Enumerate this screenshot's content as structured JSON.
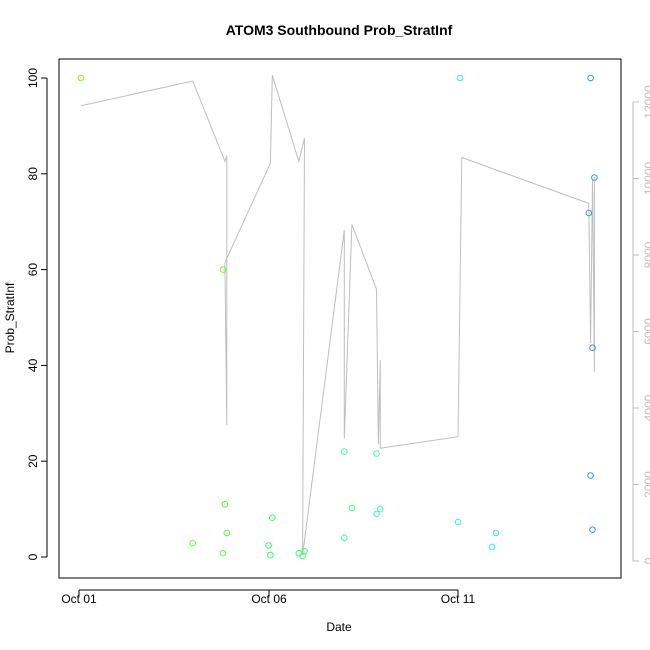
{
  "chart_data": {
    "type": "scatter",
    "title": "ATOM3 Southbound Prob_StratInf",
    "xlabel": "Date",
    "ylabel": "Prob_StratInf",
    "x_ticks": [
      "Oct 01",
      "Oct 06",
      "Oct 11"
    ],
    "xlim": [
      0,
      13.9
    ],
    "ylim": [
      0,
      100
    ],
    "y_ticks": [
      "0",
      "20",
      "40",
      "60",
      "80",
      "100"
    ],
    "y2lim": [
      0,
      12600
    ],
    "y2_ticks": [
      "0",
      "2000",
      "4000",
      "6000",
      "8000",
      "10000",
      "12000"
    ],
    "grid": false,
    "points": [
      {
        "x": 0.05,
        "y": 100.0,
        "color": "#7fff00"
      },
      {
        "x": 3.0,
        "y": 2.9,
        "color": "#66ff33"
      },
      {
        "x": 3.8,
        "y": 60.0,
        "color": "#5cff33"
      },
      {
        "x": 3.8,
        "y": 0.8,
        "color": "#5cff33"
      },
      {
        "x": 3.85,
        "y": 11.0,
        "color": "#5cff33"
      },
      {
        "x": 3.9,
        "y": 5.0,
        "color": "#5cff33"
      },
      {
        "x": 5.0,
        "y": 2.4,
        "color": "#33ff66"
      },
      {
        "x": 5.05,
        "y": 0.4,
        "color": "#33ff66"
      },
      {
        "x": 5.1,
        "y": 8.2,
        "color": "#33ff66"
      },
      {
        "x": 5.8,
        "y": 0.8,
        "color": "#33ff77"
      },
      {
        "x": 5.9,
        "y": 0.2,
        "color": "#33ff77"
      },
      {
        "x": 5.95,
        "y": 1.2,
        "color": "#33ff77"
      },
      {
        "x": 7.0,
        "y": 22.0,
        "color": "#33ff99"
      },
      {
        "x": 7.0,
        "y": 4.0,
        "color": "#33ff99"
      },
      {
        "x": 7.2,
        "y": 10.2,
        "color": "#33ff99"
      },
      {
        "x": 7.85,
        "y": 21.6,
        "color": "#33ffaa"
      },
      {
        "x": 7.85,
        "y": 9.0,
        "color": "#33ffaa"
      },
      {
        "x": 7.95,
        "y": 10.0,
        "color": "#33ffaa"
      },
      {
        "x": 10.05,
        "y": 100.0,
        "color": "#33eedd"
      },
      {
        "x": 10.0,
        "y": 7.3,
        "color": "#33eedd"
      },
      {
        "x": 10.9,
        "y": 2.1,
        "color": "#33eecc"
      },
      {
        "x": 11.0,
        "y": 5.0,
        "color": "#33eecc"
      },
      {
        "x": 13.5,
        "y": 100.0,
        "color": "#3399ee"
      },
      {
        "x": 13.45,
        "y": 71.8,
        "color": "#3399ee"
      },
      {
        "x": 13.6,
        "y": 79.2,
        "color": "#3399ee"
      },
      {
        "x": 13.55,
        "y": 43.7,
        "color": "#3399ee"
      },
      {
        "x": 13.5,
        "y": 17.0,
        "color": "#3399ee"
      },
      {
        "x": 13.55,
        "y": 5.7,
        "color": "#3399ee"
      }
    ],
    "line_series": {
      "color": "#bebebe",
      "axis": "right",
      "points": [
        [
          0.05,
          11900
        ],
        [
          3.0,
          12550
        ],
        [
          3.85,
          10450
        ],
        [
          3.9,
          10600
        ],
        [
          3.9,
          3550
        ],
        [
          3.85,
          7800
        ],
        [
          5.05,
          10400
        ],
        [
          5.1,
          12700
        ],
        [
          5.8,
          10450
        ],
        [
          5.95,
          11050
        ],
        [
          5.9,
          150
        ],
        [
          7.0,
          8650
        ],
        [
          7.0,
          3200
        ],
        [
          7.2,
          8800
        ],
        [
          7.85,
          7100
        ],
        [
          7.9,
          3050
        ],
        [
          7.95,
          5250
        ],
        [
          7.95,
          2950
        ],
        [
          10.0,
          3250
        ],
        [
          10.1,
          10550
        ],
        [
          13.45,
          9350
        ],
        [
          13.5,
          5700
        ],
        [
          13.55,
          10000
        ],
        [
          13.6,
          4950
        ],
        [
          13.6,
          10050
        ]
      ]
    }
  }
}
